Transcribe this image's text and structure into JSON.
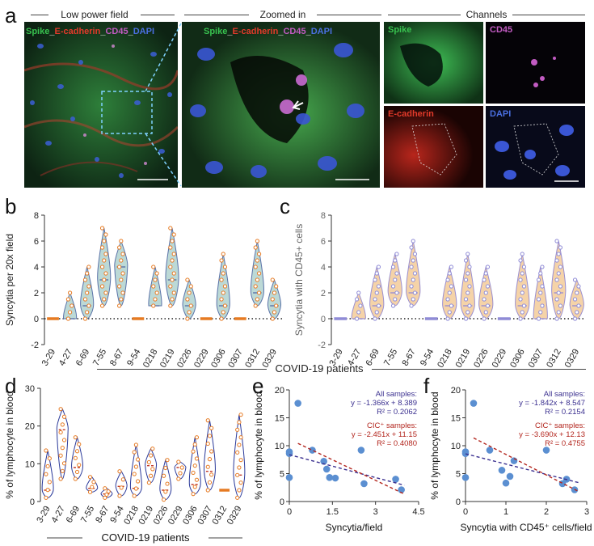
{
  "panel_letters": [
    "a",
    "b",
    "c",
    "d",
    "e",
    "f"
  ],
  "panel_a": {
    "section_titles": [
      "Low power field",
      "Zoomed in",
      "Channels"
    ],
    "merge_label": {
      "spike": "Spike",
      "sep1": "_",
      "ecad": "E-cadherin",
      "sep2": "_",
      "cd45": "CD45",
      "sep3": "_",
      "dapi": "DAPI"
    },
    "channel_labels": [
      "Spike",
      "CD45",
      "E-cadherin",
      "DAPI"
    ],
    "colors": {
      "spike": "#38c24f",
      "ecad": "#e23a2a",
      "cd45": "#c25bc2",
      "dapi": "#4a6fe0"
    }
  },
  "shared_xlabel": "COVID-19 patients",
  "chart_data": [
    {
      "panel": "b",
      "type": "violin",
      "ylabel": "Syncytia per 20x field",
      "xlabel": "COVID-19 patients",
      "ylim": [
        -2,
        8
      ],
      "yticks": [
        -2,
        0,
        2,
        4,
        6,
        8
      ],
      "categories": [
        "3-29",
        "4-27",
        "6-69",
        "7-55",
        "8-67",
        "9-54",
        "0218",
        "0219",
        "0226",
        "0229",
        "0306",
        "0307",
        "0312",
        "0329"
      ],
      "ranges": [
        [
          0,
          0
        ],
        [
          0,
          2
        ],
        [
          0,
          4
        ],
        [
          1,
          7
        ],
        [
          1,
          6
        ],
        [
          0,
          0
        ],
        [
          1,
          4
        ],
        [
          1,
          7
        ],
        [
          0,
          3
        ],
        [
          0,
          0
        ],
        [
          0,
          5
        ],
        [
          0,
          0
        ],
        [
          1,
          6
        ],
        [
          0,
          3
        ]
      ],
      "medians": [
        0,
        0,
        1,
        3,
        4,
        0,
        1,
        3,
        1,
        0,
        1,
        0,
        2,
        1
      ],
      "colors": {
        "fill": "#bcd9d6",
        "edge": "#5a72a8",
        "point": "#e67a22"
      }
    },
    {
      "panel": "c",
      "type": "violin",
      "ylabel": "Syncytia with CD45+ cells",
      "xlabel": "COVID-19 patients",
      "ylim": [
        -2,
        8
      ],
      "yticks": [
        -2,
        0,
        2,
        4,
        6,
        8
      ],
      "categories": [
        "3-29",
        "4-27",
        "6-69",
        "7-55",
        "8-67",
        "9-54",
        "0218",
        "0219",
        "0226",
        "0229",
        "0306",
        "0307",
        "0312",
        "0329"
      ],
      "ranges": [
        [
          0,
          0
        ],
        [
          0,
          2
        ],
        [
          0,
          4
        ],
        [
          1,
          5
        ],
        [
          1,
          6
        ],
        [
          0,
          0
        ],
        [
          0,
          4
        ],
        [
          0,
          5
        ],
        [
          0,
          4
        ],
        [
          0,
          0
        ],
        [
          0,
          5
        ],
        [
          0,
          4
        ],
        [
          0,
          6
        ],
        [
          0,
          3
        ]
      ],
      "medians": [
        0,
        0,
        1,
        2,
        2,
        0,
        1,
        1,
        1,
        0,
        1,
        0,
        2,
        1
      ],
      "colors": {
        "fill": "#f5d3a8",
        "edge": "#9a8fd0",
        "point": "#8f8bd6"
      }
    },
    {
      "panel": "d",
      "type": "violin",
      "ylabel": "% of lymphocyte in blood",
      "xlabel": "COVID-19 patients",
      "ylim": [
        0,
        30
      ],
      "yticks": [
        0,
        10,
        20,
        30
      ],
      "categories": [
        "3-29",
        "4-27",
        "6-69",
        "7-55",
        "8-67",
        "9-54",
        "0218",
        "0219",
        "0226",
        "0229",
        "0306",
        "0307",
        "0312",
        "0329"
      ],
      "ranges": [
        [
          1,
          13.5
        ],
        [
          6,
          24.5
        ],
        [
          6,
          17
        ],
        [
          2.5,
          6.5
        ],
        [
          1,
          3.5
        ],
        [
          1.5,
          8
        ],
        [
          1.5,
          15
        ],
        [
          5,
          14
        ],
        [
          0.5,
          11
        ],
        [
          6,
          10.5
        ],
        [
          2,
          17
        ],
        [
          3,
          21.5
        ],
        [
          3,
          3
        ],
        [
          1,
          23
        ]
      ],
      "medians": [
        3,
        19,
        9,
        3.5,
        2,
        4,
        3.5,
        9.5,
        3,
        9,
        4.5,
        8,
        3,
        7
      ],
      "colors": {
        "fill": "#ffffff",
        "edge": "#2b3a9a",
        "point": "#e67a22",
        "median": "#c23a2a"
      }
    },
    {
      "panel": "e",
      "type": "scatter",
      "xlabel": "Syncytia/field",
      "ylabel": "% of lymphocyte in blood",
      "xlim": [
        0,
        4.5
      ],
      "ylim": [
        0,
        20
      ],
      "xticks": [
        0,
        1.5,
        3,
        4.5
      ],
      "yticks": [
        0,
        5,
        10,
        15,
        20
      ],
      "points": [
        [
          0,
          8.6
        ],
        [
          0,
          8.9
        ],
        [
          0,
          4.3
        ],
        [
          0.3,
          17.6
        ],
        [
          0.8,
          9.2
        ],
        [
          1.2,
          7.2
        ],
        [
          1.3,
          5.8
        ],
        [
          1.4,
          4.3
        ],
        [
          1.6,
          4.2
        ],
        [
          2.5,
          9.2
        ],
        [
          2.6,
          3.2
        ],
        [
          3.7,
          4.0
        ],
        [
          3.9,
          2.1
        ]
      ],
      "annotations": {
        "all_title": "All samples:",
        "all_eq": "y = -1.366x + 8.389",
        "all_r2": "R² = 0.2062",
        "cic_title": "CIC⁺ samples:",
        "cic_eq": "y = -2.451x + 11.15",
        "cic_r2": "R² = 0.4080"
      },
      "fits": [
        {
          "name": "All samples",
          "slope": -1.366,
          "intercept": 8.389,
          "color": "#3a2f8f",
          "x_range": [
            0,
            4.0
          ]
        },
        {
          "name": "CIC+ samples",
          "slope": -2.451,
          "intercept": 11.15,
          "color": "#b3261e",
          "x_range": [
            0.3,
            4.0
          ]
        }
      ],
      "colors": {
        "point": "#5b8fd1"
      }
    },
    {
      "panel": "f",
      "type": "scatter",
      "xlabel": "Syncytia with CD45⁺ cells/field",
      "ylabel": "% of lymphocyte in blood",
      "xlim": [
        0,
        3
      ],
      "ylim": [
        0,
        20
      ],
      "xticks": [
        0,
        1,
        2,
        3
      ],
      "yticks": [
        0,
        5,
        10,
        15,
        20
      ],
      "points": [
        [
          0,
          8.6
        ],
        [
          0,
          8.9
        ],
        [
          0,
          4.3
        ],
        [
          0.2,
          17.6
        ],
        [
          0.6,
          9.2
        ],
        [
          0.9,
          5.6
        ],
        [
          1.0,
          3.3
        ],
        [
          1.1,
          4.5
        ],
        [
          1.2,
          7.3
        ],
        [
          2.0,
          9.2
        ],
        [
          2.4,
          3.2
        ],
        [
          2.5,
          4.0
        ],
        [
          2.7,
          2.1
        ]
      ],
      "annotations": {
        "all_title": "All samples:",
        "all_eq": "y = -1.842x + 8.547",
        "all_r2": "R² = 0.2154",
        "cic_title": "CIC⁺ samples:",
        "cic_eq": "y = -3.690x + 12.13",
        "cic_r2": "R² = 0.4755"
      },
      "fits": [
        {
          "name": "All samples",
          "slope": -1.842,
          "intercept": 8.547,
          "color": "#3a2f8f",
          "x_range": [
            0,
            2.8
          ]
        },
        {
          "name": "CIC+ samples",
          "slope": -3.69,
          "intercept": 12.13,
          "color": "#b3261e",
          "x_range": [
            0.2,
            2.8
          ]
        }
      ],
      "colors": {
        "point": "#5b8fd1"
      }
    }
  ]
}
